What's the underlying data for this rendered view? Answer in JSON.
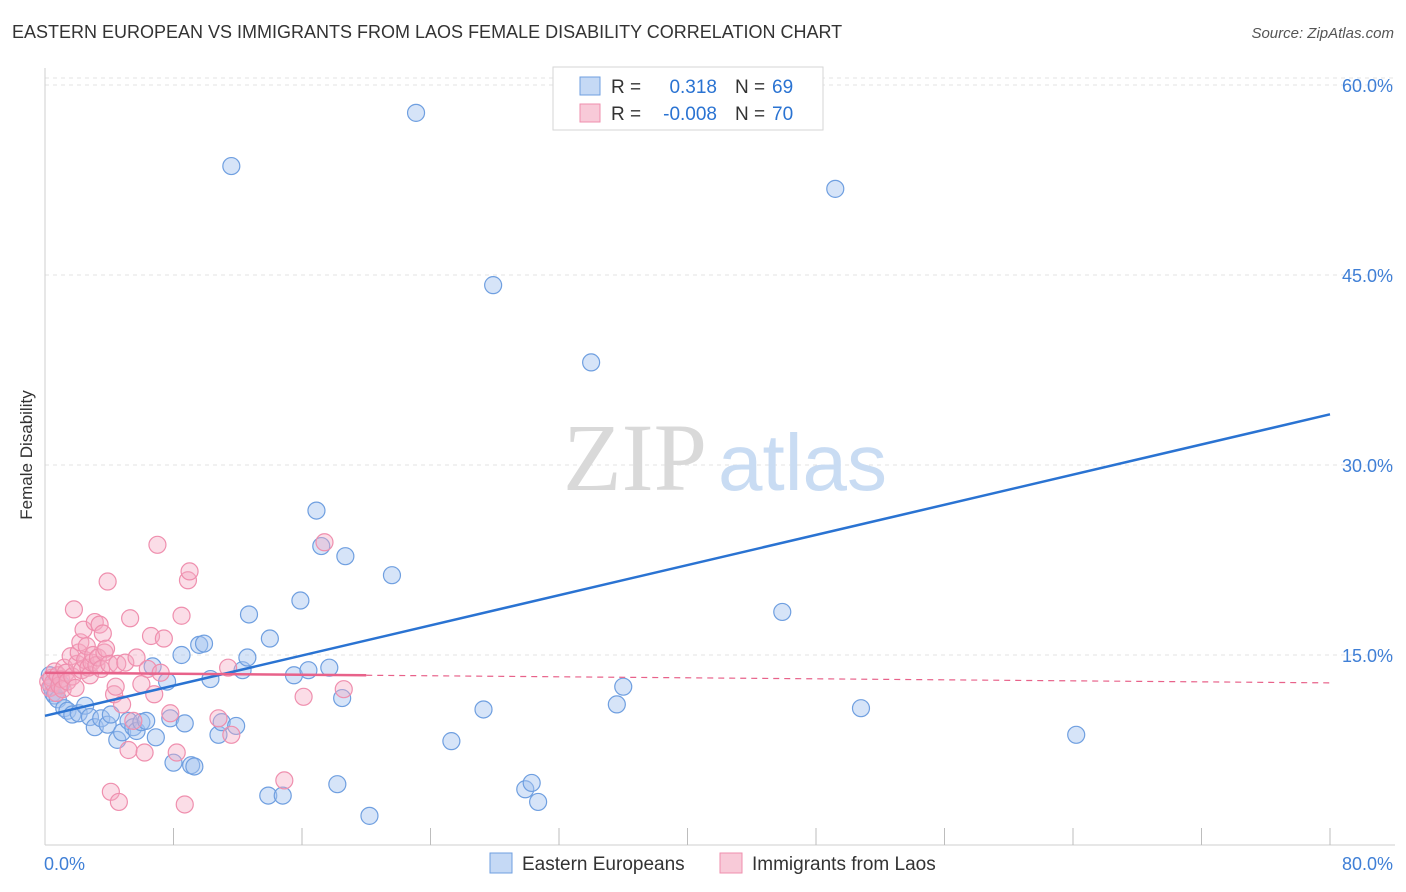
{
  "title": "EASTERN EUROPEAN VS IMMIGRANTS FROM LAOS FEMALE DISABILITY CORRELATION CHART",
  "source": "Source: ZipAtlas.com",
  "watermark": {
    "zip": "ZIP",
    "atlas": "atlas"
  },
  "chart_data": {
    "type": "scatter",
    "title": "EASTERN EUROPEAN VS IMMIGRANTS FROM LAOS FEMALE DISABILITY CORRELATION CHART",
    "xlabel": "",
    "ylabel": "Female Disability",
    "xlim": [
      0,
      80
    ],
    "ylim": [
      0,
      62
    ],
    "x_tick_labels": [
      "0.0%",
      "80.0%"
    ],
    "y_ticks": [
      15,
      30,
      45,
      60
    ],
    "y_tick_labels": [
      "15.0%",
      "30.0%",
      "45.0%",
      "60.0%"
    ],
    "legend_stats": [
      {
        "r_label": "R =",
        "r_value": "0.318",
        "n_label": "N =",
        "n_value": "69"
      },
      {
        "r_label": "R =",
        "r_value": "-0.008",
        "n_label": "N =",
        "n_value": "70"
      }
    ],
    "series": [
      {
        "name": "Eastern Europeans",
        "color": "#6f9fe0",
        "line_color": "#2a73d2",
        "trend": {
          "x": [
            0,
            80
          ],
          "y": [
            10.2,
            34.0
          ],
          "dashed_from": null
        },
        "points": [
          [
            0.3,
            13.4
          ],
          [
            0.4,
            12.5
          ],
          [
            0.5,
            12.0
          ],
          [
            0.6,
            11.8
          ],
          [
            0.8,
            11.5
          ],
          [
            1.0,
            12.7
          ],
          [
            1.2,
            10.8
          ],
          [
            1.4,
            10.6
          ],
          [
            1.7,
            10.3
          ],
          [
            2.1,
            10.4
          ],
          [
            2.5,
            11.0
          ],
          [
            2.8,
            10.1
          ],
          [
            3.1,
            9.3
          ],
          [
            3.5,
            10.0
          ],
          [
            3.9,
            9.5
          ],
          [
            4.1,
            10.3
          ],
          [
            4.5,
            8.3
          ],
          [
            4.8,
            8.9
          ],
          [
            5.2,
            9.8
          ],
          [
            5.5,
            9.3
          ],
          [
            5.7,
            9.0
          ],
          [
            6.0,
            9.7
          ],
          [
            6.3,
            9.8
          ],
          [
            6.7,
            14.1
          ],
          [
            6.9,
            8.5
          ],
          [
            7.6,
            12.9
          ],
          [
            7.8,
            10.0
          ],
          [
            8.0,
            6.5
          ],
          [
            8.5,
            15.0
          ],
          [
            8.7,
            9.6
          ],
          [
            9.1,
            6.3
          ],
          [
            9.3,
            6.2
          ],
          [
            9.6,
            15.8
          ],
          [
            9.9,
            15.9
          ],
          [
            10.3,
            13.1
          ],
          [
            10.8,
            8.7
          ],
          [
            11.0,
            9.7
          ],
          [
            11.6,
            53.6
          ],
          [
            11.9,
            9.4
          ],
          [
            12.3,
            13.8
          ],
          [
            12.6,
            14.8
          ],
          [
            12.7,
            18.2
          ],
          [
            13.9,
            3.9
          ],
          [
            14.0,
            16.3
          ],
          [
            14.8,
            3.9
          ],
          [
            15.5,
            13.4
          ],
          [
            15.9,
            19.3
          ],
          [
            16.4,
            13.8
          ],
          [
            16.9,
            26.4
          ],
          [
            17.2,
            23.6
          ],
          [
            17.7,
            14.0
          ],
          [
            18.2,
            4.8
          ],
          [
            18.5,
            11.6
          ],
          [
            18.7,
            22.8
          ],
          [
            20.2,
            2.3
          ],
          [
            21.6,
            21.3
          ],
          [
            23.1,
            57.8
          ],
          [
            25.3,
            8.2
          ],
          [
            27.3,
            10.7
          ],
          [
            27.9,
            44.2
          ],
          [
            29.9,
            4.4
          ],
          [
            30.3,
            4.9
          ],
          [
            30.7,
            3.4
          ],
          [
            34.0,
            38.1
          ],
          [
            35.6,
            11.1
          ],
          [
            36.0,
            12.5
          ],
          [
            45.9,
            18.4
          ],
          [
            49.2,
            51.8
          ],
          [
            50.8,
            10.8
          ],
          [
            64.2,
            8.7
          ]
        ]
      },
      {
        "name": "Immigrants from Laos",
        "color": "#ef8fae",
        "line_color": "#e8628a",
        "trend": {
          "x": [
            0,
            80
          ],
          "y": [
            13.6,
            12.8
          ],
          "dashed_from": 20
        },
        "points": [
          [
            0.2,
            12.9
          ],
          [
            0.3,
            12.4
          ],
          [
            0.4,
            13.2
          ],
          [
            0.5,
            12.8
          ],
          [
            0.6,
            13.7
          ],
          [
            0.7,
            12.0
          ],
          [
            0.8,
            13.4
          ],
          [
            0.9,
            12.6
          ],
          [
            1.0,
            13.1
          ],
          [
            1.1,
            12.3
          ],
          [
            1.2,
            14.0
          ],
          [
            1.3,
            13.6
          ],
          [
            1.4,
            12.9
          ],
          [
            1.6,
            14.9
          ],
          [
            1.7,
            13.3
          ],
          [
            1.8,
            18.6
          ],
          [
            1.9,
            12.4
          ],
          [
            2.0,
            14.3
          ],
          [
            2.1,
            15.2
          ],
          [
            2.2,
            16.0
          ],
          [
            2.3,
            13.8
          ],
          [
            2.4,
            17.0
          ],
          [
            2.5,
            14.6
          ],
          [
            2.6,
            15.7
          ],
          [
            2.7,
            14.0
          ],
          [
            2.8,
            13.4
          ],
          [
            2.9,
            14.4
          ],
          [
            3.0,
            15.0
          ],
          [
            3.1,
            17.6
          ],
          [
            3.2,
            14.2
          ],
          [
            3.3,
            14.8
          ],
          [
            3.4,
            17.4
          ],
          [
            3.5,
            13.9
          ],
          [
            3.6,
            16.7
          ],
          [
            3.7,
            15.2
          ],
          [
            3.8,
            15.5
          ],
          [
            3.9,
            20.8
          ],
          [
            4.0,
            14.3
          ],
          [
            4.1,
            4.2
          ],
          [
            4.3,
            11.9
          ],
          [
            4.4,
            12.5
          ],
          [
            4.5,
            14.3
          ],
          [
            4.6,
            3.4
          ],
          [
            4.8,
            11.1
          ],
          [
            5.0,
            14.4
          ],
          [
            5.2,
            7.5
          ],
          [
            5.3,
            17.9
          ],
          [
            5.5,
            9.8
          ],
          [
            5.7,
            14.8
          ],
          [
            6.0,
            12.7
          ],
          [
            6.2,
            7.3
          ],
          [
            6.4,
            13.9
          ],
          [
            6.6,
            16.5
          ],
          [
            6.8,
            11.9
          ],
          [
            7.0,
            23.7
          ],
          [
            7.2,
            13.6
          ],
          [
            7.4,
            16.3
          ],
          [
            7.8,
            10.4
          ],
          [
            8.2,
            7.3
          ],
          [
            8.5,
            18.1
          ],
          [
            8.7,
            3.2
          ],
          [
            8.9,
            20.9
          ],
          [
            9.0,
            21.6
          ],
          [
            10.8,
            10.0
          ],
          [
            11.4,
            14.0
          ],
          [
            11.6,
            8.7
          ],
          [
            14.9,
            5.1
          ],
          [
            16.1,
            11.7
          ],
          [
            17.4,
            23.9
          ],
          [
            18.6,
            12.3
          ]
        ]
      }
    ]
  }
}
